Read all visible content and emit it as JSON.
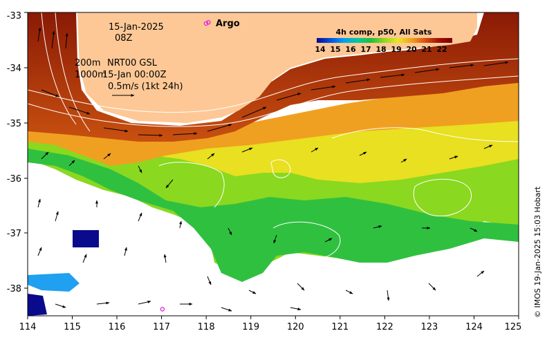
{
  "map": {
    "lon_range": [
      114,
      125
    ],
    "lat_range": [
      -38.5,
      -33
    ],
    "x_ticks": [
      "114",
      "115",
      "116",
      "117",
      "118",
      "119",
      "120",
      "121",
      "122",
      "123",
      "124",
      "125"
    ],
    "y_ticks": [
      "-33",
      "-34",
      "-35",
      "-36",
      "-37",
      "-38"
    ],
    "date_line": "15-Jan-2025",
    "time_line": "08Z",
    "depth_line_1": "200m",
    "depth_line_2": "1000m",
    "source_label": "NRT00 GSL",
    "current_time": "15-Jan 00:00Z",
    "scale_label": "0.5m/s (1kt 24h)",
    "argo_label": "Argo",
    "credit": "© IMOS 19-Jan-2025 15:03 Hobart"
  },
  "colorbar": {
    "title": "4h comp, p50, All Sats",
    "ticks": [
      "14",
      "15",
      "16",
      "17",
      "18",
      "19",
      "20",
      "21",
      "22"
    ]
  },
  "colors": {
    "land": "#fdc896",
    "no_data": "#ffffff",
    "argo_marker": "#e020e0",
    "contour": "#ffffff",
    "sst_scale": [
      "#0a0a8c",
      "#0050e0",
      "#00a0f0",
      "#00c8a0",
      "#20c040",
      "#90d820",
      "#e8e820",
      "#f0a020",
      "#d85010",
      "#a01008",
      "#780000"
    ]
  },
  "argo_floats": [
    {
      "lon": 118.05,
      "lat": -33.18
    },
    {
      "lon": 117.02,
      "lat": -38.38
    }
  ]
}
